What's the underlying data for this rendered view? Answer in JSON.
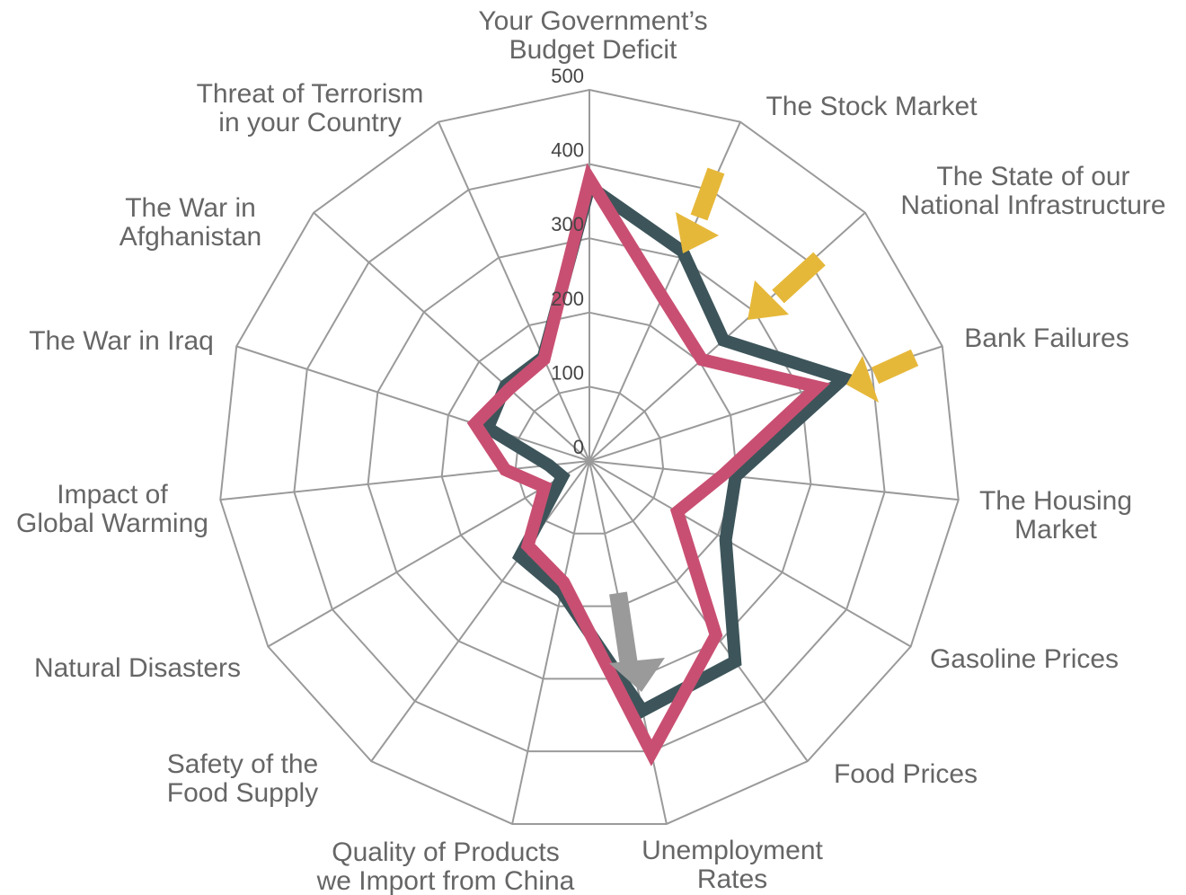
{
  "chart_data": {
    "type": "radar",
    "categories": [
      [
        "Your Government’s",
        "Budget Deficit"
      ],
      [
        "The Stock Market"
      ],
      [
        "The State of our",
        "National Infrastructure"
      ],
      [
        "Bank Failures"
      ],
      [
        "The Housing",
        "Market"
      ],
      [
        "Gasoline Prices"
      ],
      [
        "Food Prices"
      ],
      [
        "Unemployment",
        "Rates"
      ],
      [
        "Quality of Products",
        "we Import from China"
      ],
      [
        "Safety of the",
        "Food Supply"
      ],
      [
        "Natural Disasters"
      ],
      [
        "Impact of",
        "Global Warming"
      ],
      [
        "The War in Iraq"
      ],
      [
        "The War in",
        "Afghanistan"
      ],
      [
        "Threat of Terrorism",
        "in your Country"
      ]
    ],
    "series": [
      {
        "color": "#3d555a",
        "values": [
          370,
          309,
          243,
          360,
          198,
          212,
          334,
          344,
          180,
          159,
          42,
          55,
          144,
          152,
          153
        ]
      },
      {
        "color": "#c94f72",
        "values": [
          380,
          242,
          204,
          323,
          181,
          137,
          290,
          402,
          167,
          141,
          70,
          114,
          162,
          145,
          150
        ]
      }
    ],
    "rlim": [
      0,
      500
    ],
    "rticks": [
      0,
      100,
      200,
      300,
      400,
      500
    ],
    "grid": true
  }
}
